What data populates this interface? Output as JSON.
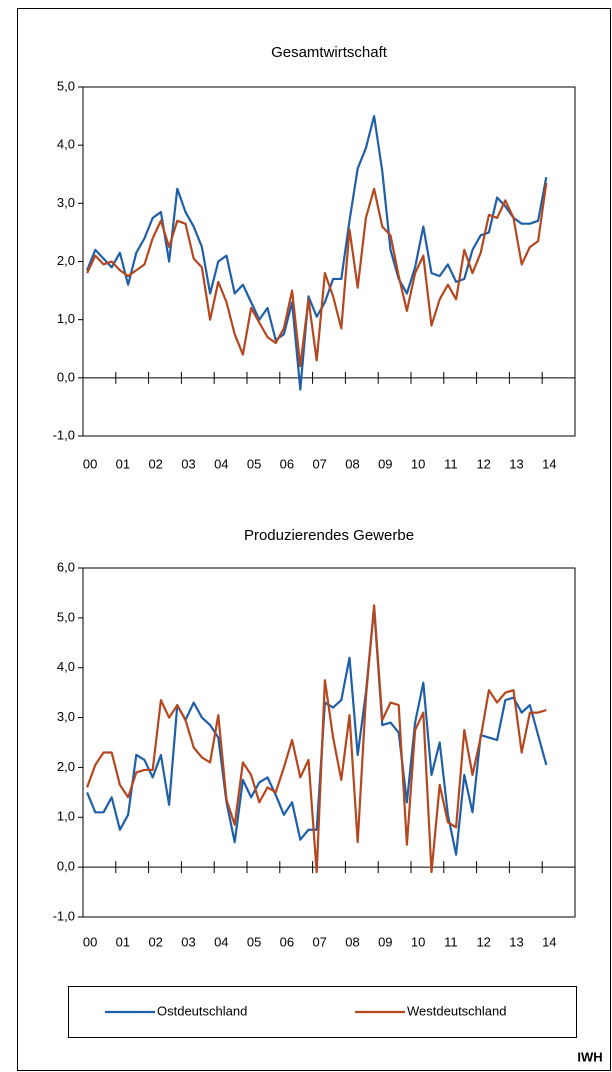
{
  "chart_data": [
    {
      "type": "line",
      "title": "Gesamtwirtschaft",
      "categories": [
        "00",
        null,
        null,
        null,
        "01",
        null,
        null,
        null,
        "02",
        null,
        null,
        null,
        "03",
        null,
        null,
        null,
        "04",
        null,
        null,
        null,
        "05",
        null,
        null,
        null,
        "06",
        null,
        null,
        null,
        "07",
        null,
        null,
        null,
        "08",
        null,
        null,
        null,
        "09",
        null,
        null,
        null,
        "10",
        null,
        null,
        null,
        "11",
        null,
        null,
        null,
        "12",
        null,
        null,
        null,
        "13",
        null,
        null,
        null,
        "14",
        null,
        null,
        null
      ],
      "series": [
        {
          "color": "#1f5fa8",
          "values": [
            1.85,
            2.2,
            2.05,
            1.9,
            2.15,
            1.6,
            2.15,
            2.4,
            2.75,
            2.85,
            2.0,
            3.25,
            2.85,
            2.6,
            2.25,
            1.45,
            2.0,
            2.1,
            1.45,
            1.6,
            1.3,
            1.0,
            1.2,
            0.65,
            0.75,
            1.3,
            -0.2,
            1.4,
            1.05,
            1.3,
            1.7,
            1.7,
            2.7,
            3.6,
            3.95,
            4.5,
            3.55,
            2.2,
            1.7,
            1.45,
            1.9,
            2.6,
            1.8,
            1.75,
            1.95,
            1.65,
            1.7,
            2.2,
            2.45,
            2.5,
            3.1,
            2.95,
            2.75,
            2.65,
            2.65,
            2.7,
            3.45,
            null,
            null,
            null
          ]
        },
        {
          "color": "#b5471f",
          "values": [
            1.8,
            2.1,
            1.95,
            2.0,
            1.85,
            1.75,
            1.85,
            1.95,
            2.4,
            2.7,
            2.25,
            2.7,
            2.65,
            2.05,
            1.9,
            1.0,
            1.65,
            1.3,
            0.75,
            0.4,
            1.2,
            0.95,
            0.7,
            0.6,
            0.85,
            1.5,
            0.2,
            1.35,
            0.3,
            1.8,
            1.4,
            0.85,
            2.55,
            1.55,
            2.75,
            3.25,
            2.6,
            2.45,
            1.75,
            1.15,
            1.8,
            2.1,
            0.9,
            1.35,
            1.6,
            1.35,
            2.2,
            1.8,
            2.15,
            2.8,
            2.75,
            3.05,
            2.75,
            1.95,
            2.25,
            2.35,
            3.35,
            null,
            null,
            null
          ]
        }
      ],
      "ylim": [
        -1,
        5
      ],
      "yticks": [
        {
          "value": -1,
          "label": "-1,0"
        },
        {
          "value": 0,
          "label": "0,0"
        },
        {
          "value": 1,
          "label": "1,0"
        },
        {
          "value": 2,
          "label": "2,0"
        },
        {
          "value": 3,
          "label": "3,0"
        },
        {
          "value": 4,
          "label": "4,0"
        },
        {
          "value": 5,
          "label": "5,0"
        }
      ]
    },
    {
      "type": "line",
      "title": "Produzierendes Gewerbe",
      "categories": [
        "00",
        null,
        null,
        null,
        "01",
        null,
        null,
        null,
        "02",
        null,
        null,
        null,
        "03",
        null,
        null,
        null,
        "04",
        null,
        null,
        null,
        "05",
        null,
        null,
        null,
        "06",
        null,
        null,
        null,
        "07",
        null,
        null,
        null,
        "08",
        null,
        null,
        null,
        "09",
        null,
        null,
        null,
        "10",
        null,
        null,
        null,
        "11",
        null,
        null,
        null,
        "12",
        null,
        null,
        null,
        "13",
        null,
        null,
        null,
        "14",
        null,
        null,
        null
      ],
      "series": [
        {
          "color": "#1f5fa8",
          "values": [
            1.5,
            1.1,
            1.1,
            1.4,
            0.75,
            1.05,
            2.25,
            2.15,
            1.8,
            2.25,
            1.25,
            3.25,
            2.95,
            3.3,
            3.0,
            2.85,
            2.6,
            1.3,
            0.5,
            1.75,
            1.4,
            1.7,
            1.8,
            1.45,
            1.05,
            1.3,
            0.55,
            0.75,
            0.75,
            3.3,
            3.2,
            3.35,
            4.2,
            2.25,
            3.5,
            5.2,
            2.85,
            2.9,
            2.7,
            1.3,
            2.9,
            3.7,
            1.85,
            2.5,
            1.05,
            0.25,
            1.85,
            1.1,
            2.65,
            2.6,
            2.55,
            3.35,
            3.4,
            3.1,
            3.25,
            2.65,
            2.05,
            null,
            null,
            null
          ]
        },
        {
          "color": "#b5471f",
          "values": [
            1.6,
            2.05,
            2.3,
            2.3,
            1.65,
            1.4,
            1.9,
            1.95,
            1.95,
            3.35,
            3.0,
            3.25,
            2.95,
            2.4,
            2.2,
            2.1,
            3.05,
            1.35,
            0.85,
            2.1,
            1.85,
            1.3,
            1.6,
            1.5,
            2.0,
            2.55,
            1.8,
            2.15,
            -0.1,
            3.75,
            2.6,
            1.75,
            3.05,
            0.5,
            3.4,
            5.25,
            2.95,
            3.3,
            3.25,
            0.45,
            2.75,
            3.1,
            -0.1,
            1.65,
            0.9,
            0.8,
            2.75,
            1.85,
            2.6,
            3.55,
            3.3,
            3.5,
            3.55,
            2.3,
            3.1,
            3.1,
            3.15,
            null,
            null,
            null
          ]
        }
      ],
      "ylim": [
        -1,
        6
      ],
      "yticks": [
        {
          "value": -1,
          "label": "-1,0"
        },
        {
          "value": 0,
          "label": "0,0"
        },
        {
          "value": 1,
          "label": "1,0"
        },
        {
          "value": 2,
          "label": "2,0"
        },
        {
          "value": 3,
          "label": "3,0"
        },
        {
          "value": 4,
          "label": "4,0"
        },
        {
          "value": 5,
          "label": "5,0"
        },
        {
          "value": 6,
          "label": "6,0"
        }
      ]
    }
  ],
  "legend": [
    "Ostdeutschland",
    "Westdeutschland"
  ],
  "source": "IWH"
}
